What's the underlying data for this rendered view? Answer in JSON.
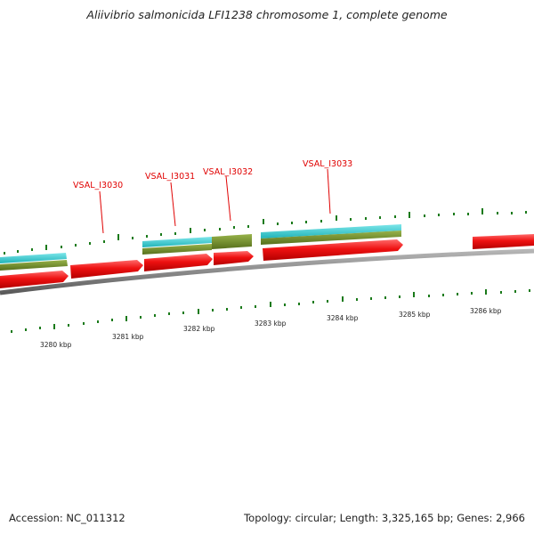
{
  "title": "Aliivibrio salmonicida LFI1238 chromosome 1, complete genome",
  "footer": {
    "accession": "Accession: NC_011312",
    "summary": "Topology: circular; Length: 3,325,165 bp; Genes: 2,966"
  },
  "colors": {
    "backbone": "#8a8a8a",
    "gene_red": "#ee1111",
    "cds_teal": "#2ec8cc",
    "cds_olive": "#6e8c2a",
    "label_red": "#e00000",
    "tick_green": "#1a7a1a"
  },
  "gene_labels": [
    {
      "name": "VSAL_I3030"
    },
    {
      "name": "VSAL_I3031"
    },
    {
      "name": "VSAL_I3032"
    },
    {
      "name": "VSAL_I3033"
    }
  ],
  "scale_labels": [
    "3280 kbp",
    "3281 kbp",
    "3282 kbp",
    "3283 kbp",
    "3284 kbp",
    "3285 kbp",
    "3286 kbp"
  ]
}
